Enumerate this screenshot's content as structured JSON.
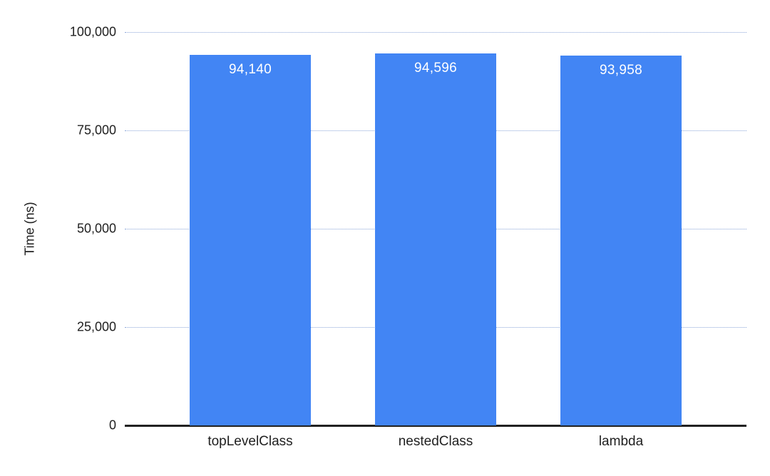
{
  "chart_data": {
    "type": "bar",
    "title": "",
    "categories": [
      "topLevelClass",
      "nestedClass",
      "lambda"
    ],
    "values": [
      94140,
      94596,
      93958
    ],
    "value_labels": [
      "94,140",
      "94,596",
      "93,958"
    ],
    "xlabel": "",
    "ylabel": "Time (ns)",
    "ylim": [
      0,
      100000
    ],
    "yticks": [
      {
        "value": 0,
        "label": "0"
      },
      {
        "value": 25000,
        "label": "25,000"
      },
      {
        "value": 50000,
        "label": "50,000"
      },
      {
        "value": 75000,
        "label": "75,000"
      },
      {
        "value": 100000,
        "label": "100,000"
      }
    ],
    "grid": true,
    "legend_position": "none",
    "colors": {
      "bar": "#4285f4",
      "data_label": "#ffffff",
      "axis_text": "#212121",
      "gridline": "#8ca6d9",
      "baseline": "#212121",
      "background": "#ffffff"
    }
  }
}
